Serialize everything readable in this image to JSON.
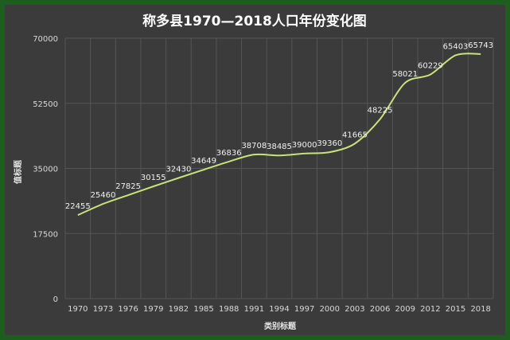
{
  "chart_data": {
    "type": "line",
    "title": "称多县1970—2018人口年份变化图",
    "xlabel": "类别标题",
    "ylabel": "值标题",
    "ylim": [
      0,
      70000
    ],
    "yticks": [
      0,
      17500,
      35000,
      52500,
      70000
    ],
    "grid": true,
    "line_color": "#c9e27a",
    "categories": [
      "1970",
      "1973",
      "1976",
      "1979",
      "1982",
      "1985",
      "1988",
      "1991",
      "1994",
      "1997",
      "2000",
      "2003",
      "2006",
      "2009",
      "2012",
      "2015",
      "2018"
    ],
    "series": [
      {
        "values": [
          22455,
          25460,
          27825,
          30155,
          32430,
          34649,
          36836,
          38708,
          38485,
          39000,
          39360,
          41665,
          48225,
          58021,
          60229,
          65403,
          65743
        ]
      }
    ]
  }
}
